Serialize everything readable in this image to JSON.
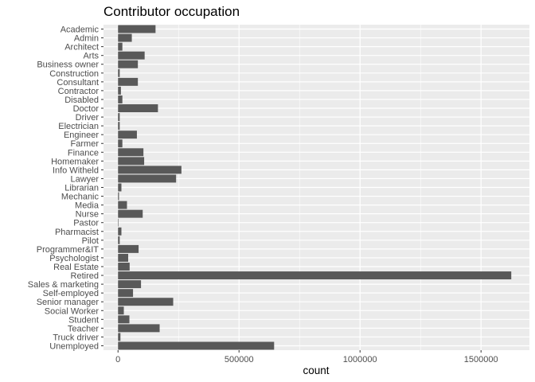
{
  "chart_data": {
    "type": "bar",
    "orientation": "horizontal",
    "title": "Contributor occupation",
    "xlabel": "count",
    "ylabel": "",
    "xlim": [
      -60000,
      1700000
    ],
    "x_ticks": [
      0,
      500000,
      1000000,
      1500000
    ],
    "x_tick_labels": [
      "0",
      "500000",
      "1000000",
      "1500000"
    ],
    "grid": true,
    "legend": "none",
    "bar_color": "#595959",
    "panel_color": "#ebebeb",
    "categories": [
      "Academic",
      "Admin",
      "Architect",
      "Arts",
      "Business owner",
      "Construction",
      "Consultant",
      "Contractor",
      "Disabled",
      "Doctor",
      "Driver",
      "Electrician",
      "Engineer",
      "Farmer",
      "Finance",
      "Homemaker",
      "Info Witheld",
      "Lawyer",
      "Librarian",
      "Mechanic",
      "Media",
      "Nurse",
      "Pastor",
      "Pharmacist",
      "Pilot",
      "Programmer&IT",
      "Psychologist",
      "Real Estate",
      "Retired",
      "Sales & marketing",
      "Self-employed",
      "Senior manager",
      "Social Worker",
      "Student",
      "Teacher",
      "Truck driver",
      "Unemployed"
    ],
    "values": [
      155000,
      57000,
      18000,
      110000,
      82000,
      7000,
      82000,
      12000,
      18000,
      165000,
      7000,
      7000,
      78000,
      18000,
      105000,
      108000,
      262000,
      240000,
      14000,
      4000,
      37000,
      102000,
      2000,
      14000,
      7000,
      85000,
      42000,
      48000,
      1625000,
      95000,
      62000,
      228000,
      24000,
      47000,
      172000,
      10000,
      645000
    ]
  }
}
